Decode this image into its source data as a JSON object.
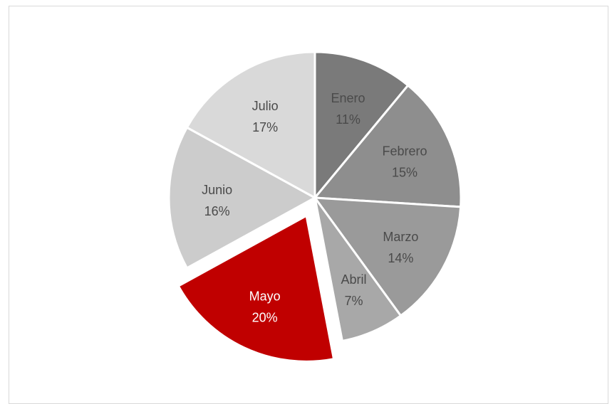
{
  "chart_data": {
    "type": "pie",
    "title": "",
    "categories": [
      "Enero",
      "Febrero",
      "Marzo",
      "Abril",
      "Mayo",
      "Junio",
      "Julio"
    ],
    "values": [
      11,
      15,
      14,
      7,
      20,
      16,
      17
    ],
    "value_labels": [
      "11%",
      "15%",
      "14%",
      "7%",
      "20%",
      "16%",
      "17%"
    ],
    "colors": [
      "#7a7a7a",
      "#8e8e8e",
      "#9a9a9a",
      "#a8a8a8",
      "#c00000",
      "#cccccc",
      "#d9d9d9"
    ],
    "label_colors": [
      "#4a4a4a",
      "#4a4a4a",
      "#4a4a4a",
      "#4a4a4a",
      "#ffffff",
      "#4a4a4a",
      "#4a4a4a"
    ],
    "exploded": [
      "Mayo"
    ],
    "start_angle_deg": 0,
    "direction": "clockwise",
    "legend": "none"
  }
}
